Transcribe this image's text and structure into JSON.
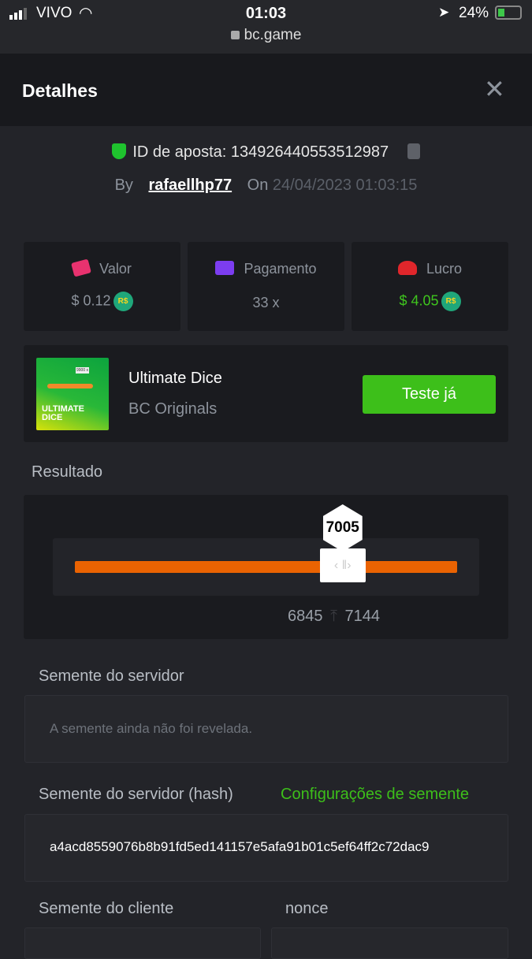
{
  "status_bar": {
    "carrier": "VIVO",
    "time": "01:03",
    "battery": "24%",
    "url": "bc.game"
  },
  "header": {
    "title": "Detalhes"
  },
  "bet": {
    "id_label": "ID de aposta:",
    "id": "134926440553512987",
    "by_label": "By",
    "user": "rafaellhp77",
    "on_label": "On",
    "datetime": "24/04/2023 01:03:15"
  },
  "stats": [
    {
      "label": "Valor",
      "value": "$ 0.12",
      "currency": "R$",
      "icon": "money-bag-icon",
      "color": "#e8326f"
    },
    {
      "label": "Pagamento",
      "value": "33 x",
      "icon": "card-icon",
      "color": "#7c3df0"
    },
    {
      "label": "Lucro",
      "value": "$ 4.05",
      "currency": "R$",
      "icon": "hand-profit-icon",
      "color": "#e0262b"
    }
  ],
  "game": {
    "name": "Ultimate Dice",
    "provider": "BC Originals",
    "thumb_text": "ULTIMATE DICE",
    "thumb_badge": "9900 x",
    "button": "Teste já"
  },
  "result": {
    "label": "Resultado",
    "value": "7005",
    "value_fraction": 0.7005,
    "range_low": "6845",
    "range_high": "7144",
    "accent": "#ea6302"
  },
  "seeds": {
    "server_label": "Semente do servidor",
    "server_value": "A semente ainda não foi revelada.",
    "hash_label": "Semente do servidor (hash)",
    "settings_link": "Configurações de semente",
    "hash_value": "a4acd8559076b8b91fd5ed141157e5afa91b01c5ef64ff2c72dac9",
    "client_label": "Semente do cliente",
    "nonce_label": "nonce"
  }
}
